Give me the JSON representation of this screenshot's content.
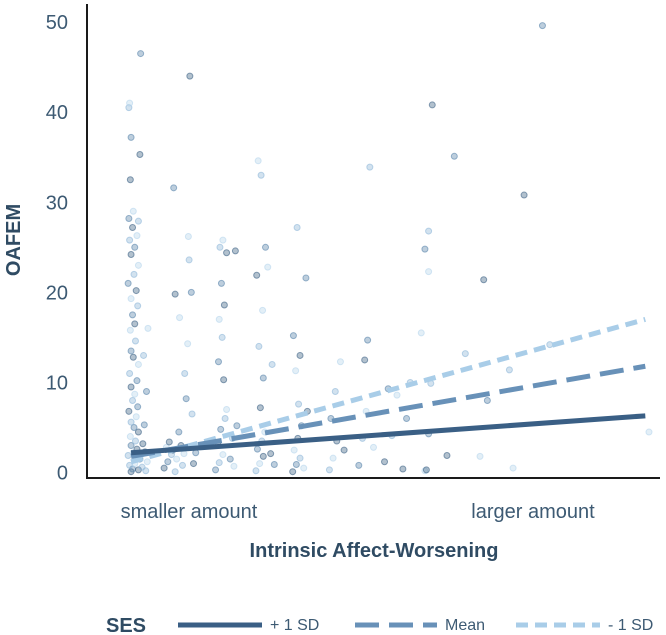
{
  "chart_data": {
    "type": "scatter",
    "title": "",
    "xlabel": "Intrinsic Affect-Worsening",
    "ylabel": "OAFEM",
    "x_tick_labels": [
      "smaller amount",
      "larger amount"
    ],
    "y_ticks": [
      0,
      10,
      20,
      30,
      40,
      50
    ],
    "xlim": [
      0.4,
      8.2
    ],
    "ylim": [
      -0.6,
      52
    ],
    "grid": false,
    "legend": {
      "title": "SES",
      "position": "bottom",
      "entries": [
        {
          "label": "+ 1 SD",
          "color": "#3a5f85",
          "dash": "solid"
        },
        {
          "label": "Mean",
          "color": "#6891b8",
          "dash": "dashed"
        },
        {
          "label": "- 1 SD",
          "color": "#a9cde8",
          "dash": "dashed"
        }
      ]
    },
    "series": [
      {
        "name": "+ 1 SD",
        "x": [
          1,
          8
        ],
        "y": [
          2.2,
          6.3
        ]
      },
      {
        "name": "Mean",
        "x": [
          1,
          8
        ],
        "y": [
          1.8,
          11.8
        ]
      },
      {
        "name": "- 1 SD",
        "x": [
          1,
          8
        ],
        "y": [
          1.2,
          17.0
        ]
      }
    ],
    "points": [
      [
        1.0,
        0.1
      ],
      [
        1.02,
        0.4
      ],
      [
        0.98,
        0.8
      ],
      [
        1.05,
        1.0
      ],
      [
        1.1,
        0.3
      ],
      [
        1.12,
        1.5
      ],
      [
        0.96,
        1.9
      ],
      [
        1.03,
        2.2
      ],
      [
        1.08,
        2.6
      ],
      [
        1.0,
        3.0
      ],
      [
        1.06,
        3.5
      ],
      [
        0.99,
        4.0
      ],
      [
        1.1,
        4.5
      ],
      [
        1.04,
        5.0
      ],
      [
        1.0,
        5.6
      ],
      [
        1.07,
        6.2
      ],
      [
        0.97,
        6.8
      ],
      [
        1.09,
        7.3
      ],
      [
        1.02,
        8.0
      ],
      [
        1.05,
        8.7
      ],
      [
        1.0,
        9.5
      ],
      [
        1.08,
        10.2
      ],
      [
        0.98,
        11.0
      ],
      [
        1.1,
        12.0
      ],
      [
        1.03,
        12.8
      ],
      [
        1.0,
        13.5
      ],
      [
        1.06,
        14.6
      ],
      [
        0.99,
        15.8
      ],
      [
        1.05,
        16.5
      ],
      [
        1.02,
        17.5
      ],
      [
        1.09,
        18.5
      ],
      [
        1.0,
        19.3
      ],
      [
        1.07,
        20.2
      ],
      [
        0.96,
        21.0
      ],
      [
        1.04,
        22.0
      ],
      [
        1.1,
        23.0
      ],
      [
        1.0,
        24.2
      ],
      [
        1.05,
        25.0
      ],
      [
        0.98,
        25.8
      ],
      [
        1.08,
        26.3
      ],
      [
        1.02,
        27.2
      ],
      [
        0.97,
        28.2
      ],
      [
        1.1,
        27.9
      ],
      [
        1.03,
        29.0
      ],
      [
        0.99,
        32.5
      ],
      [
        1.0,
        37.2
      ],
      [
        0.97,
        40.5
      ],
      [
        0.98,
        41.0
      ],
      [
        1.12,
        35.3
      ],
      [
        1.13,
        46.5
      ],
      [
        1.15,
        0.6
      ],
      [
        1.14,
        2.0
      ],
      [
        1.16,
        3.2
      ],
      [
        1.18,
        5.3
      ],
      [
        1.2,
        0.2
      ],
      [
        1.22,
        1.2
      ],
      [
        1.19,
        2.3
      ],
      [
        1.21,
        9.0
      ],
      [
        1.17,
        13.0
      ],
      [
        1.23,
        16.0
      ],
      [
        1.45,
        0.5
      ],
      [
        1.5,
        1.2
      ],
      [
        1.55,
        2.0
      ],
      [
        1.48,
        2.8
      ],
      [
        1.52,
        3.4
      ],
      [
        1.58,
        31.6
      ],
      [
        1.6,
        0.1
      ],
      [
        1.62,
        1.5
      ],
      [
        1.57,
        2.5
      ],
      [
        1.65,
        4.5
      ],
      [
        1.7,
        0.8
      ],
      [
        1.72,
        2.1
      ],
      [
        1.68,
        3.0
      ],
      [
        1.75,
        8.2
      ],
      [
        1.73,
        11.0
      ],
      [
        1.77,
        14.3
      ],
      [
        1.8,
        44.0
      ],
      [
        1.82,
        20.0
      ],
      [
        1.79,
        23.6
      ],
      [
        1.78,
        26.2
      ],
      [
        1.85,
        1.0
      ],
      [
        1.88,
        2.2
      ],
      [
        1.83,
        6.5
      ],
      [
        1.66,
        17.2
      ],
      [
        1.6,
        19.8
      ],
      [
        2.15,
        0.3
      ],
      [
        2.2,
        1.1
      ],
      [
        2.25,
        2.0
      ],
      [
        2.18,
        3.3
      ],
      [
        2.22,
        4.8
      ],
      [
        2.28,
        6.0
      ],
      [
        2.3,
        7.0
      ],
      [
        2.26,
        10.3
      ],
      [
        2.19,
        12.3
      ],
      [
        2.24,
        15.0
      ],
      [
        2.2,
        17.0
      ],
      [
        2.27,
        18.6
      ],
      [
        2.23,
        21.0
      ],
      [
        2.21,
        25.0
      ],
      [
        2.25,
        25.8
      ],
      [
        2.3,
        24.4
      ],
      [
        2.35,
        1.5
      ],
      [
        2.38,
        3.8
      ],
      [
        2.4,
        0.7
      ],
      [
        2.42,
        24.6
      ],
      [
        2.44,
        5.2
      ],
      [
        2.7,
        0.2
      ],
      [
        2.75,
        1.0
      ],
      [
        2.8,
        1.8
      ],
      [
        2.72,
        2.6
      ],
      [
        2.78,
        3.5
      ],
      [
        2.82,
        4.5
      ],
      [
        2.76,
        7.2
      ],
      [
        2.8,
        10.5
      ],
      [
        2.74,
        14.0
      ],
      [
        2.79,
        18.0
      ],
      [
        2.71,
        21.9
      ],
      [
        2.83,
        25.0
      ],
      [
        2.77,
        33.0
      ],
      [
        2.73,
        34.6
      ],
      [
        2.9,
        2.1
      ],
      [
        2.95,
        0.9
      ],
      [
        2.92,
        12.0
      ],
      [
        2.86,
        22.8
      ],
      [
        3.2,
        0.1
      ],
      [
        3.25,
        0.9
      ],
      [
        3.3,
        1.6
      ],
      [
        3.22,
        2.5
      ],
      [
        3.27,
        3.8
      ],
      [
        3.32,
        5.2
      ],
      [
        3.28,
        7.6
      ],
      [
        3.24,
        11.3
      ],
      [
        3.3,
        13.0
      ],
      [
        3.21,
        15.2
      ],
      [
        3.26,
        27.2
      ],
      [
        3.35,
        0.5
      ],
      [
        3.4,
        6.8
      ],
      [
        3.38,
        21.6
      ],
      [
        3.7,
        0.3
      ],
      [
        3.75,
        1.6
      ],
      [
        3.8,
        3.5
      ],
      [
        3.72,
        6.0
      ],
      [
        3.78,
        9.0
      ],
      [
        3.85,
        12.3
      ],
      [
        3.9,
        2.5
      ],
      [
        4.1,
        0.8
      ],
      [
        4.15,
        3.8
      ],
      [
        4.2,
        6.8
      ],
      [
        4.18,
        12.5
      ],
      [
        4.22,
        14.7
      ],
      [
        4.25,
        33.9
      ],
      [
        4.3,
        2.8
      ],
      [
        4.45,
        1.2
      ],
      [
        4.5,
        9.3
      ],
      [
        4.55,
        4.1
      ],
      [
        4.62,
        8.6
      ],
      [
        4.7,
        0.4
      ],
      [
        4.75,
        6.0
      ],
      [
        4.8,
        10.0
      ],
      [
        5.0,
        0.2
      ],
      [
        5.02,
        0.3
      ],
      [
        5.05,
        4.3
      ],
      [
        5.08,
        9.9
      ],
      [
        5.05,
        22.3
      ],
      [
        5.1,
        40.8
      ],
      [
        5.0,
        24.8
      ],
      [
        5.05,
        26.8
      ],
      [
        4.95,
        15.5
      ],
      [
        5.3,
        1.9
      ],
      [
        5.4,
        35.1
      ],
      [
        5.55,
        13.2
      ],
      [
        5.75,
        1.8
      ],
      [
        5.8,
        21.4
      ],
      [
        5.85,
        8.0
      ],
      [
        6.15,
        11.4
      ],
      [
        6.2,
        0.5
      ],
      [
        6.35,
        30.8
      ],
      [
        6.6,
        49.6
      ],
      [
        6.7,
        14.2
      ],
      [
        8.05,
        4.5
      ]
    ]
  }
}
